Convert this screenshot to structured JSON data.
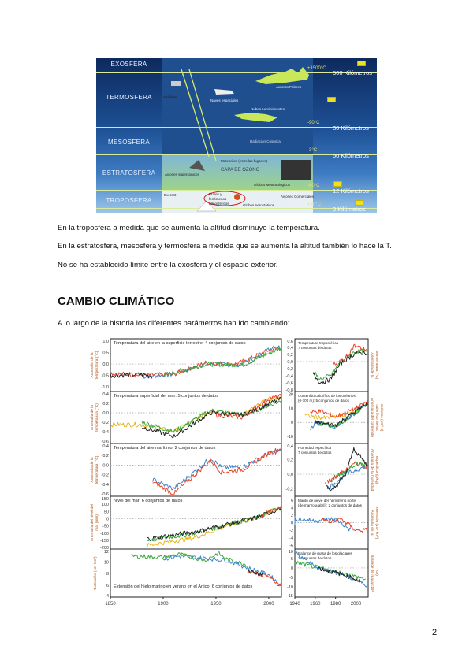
{
  "atmosphere_diagram": {
    "layers": [
      "EXOSFERA",
      "TERMOSFERA",
      "MESOSFERA",
      "ESTRATOSFERA",
      "TROPOSFERA"
    ],
    "altitudes": [
      "500 Kilómetros",
      "80 Kilómetros",
      "50 Kilómetros",
      "12 Kilómetros",
      "0 Kilómetros"
    ],
    "temperatures": [
      "+1500°C",
      "-90°C",
      "-3°C",
      "-60°C",
      "+20°C"
    ],
    "labels": [
      "Satélites",
      "Naves espaciales",
      "Auroras Polares",
      "Nubes Luminiscentes",
      "Radiación Cósmica",
      "Meteoritos (estrellas fugaces)",
      "Aviones supersónicos",
      "CAPA DE OZONO",
      "Globos Meteorológicos",
      "Everest",
      "Nubes y fenómenos atmosféricos",
      "Globos Aerostáticos",
      "Aviones Comerciales"
    ]
  },
  "paragraphs": [
    "En la troposfera a medida que se aumenta la altitud disminuye la temperatura.",
    "En la estratosfera, mesosfera y termosfera a medida que se aumenta la altitud también lo hace la T.",
    "No se ha establecido límite entre la exosfera y el espacio exterior."
  ],
  "section_title": "CAMBIO CLIMÁTICO",
  "intro": "A lo largo de la historia los diferentes parámetros han ido cambiando:",
  "page_number": "2",
  "colors": {
    "blue": "#3f86c8",
    "red": "#e8452a",
    "green": "#3aa83a",
    "yellow": "#e6b820",
    "black": "#222222"
  },
  "chart_data": [
    {
      "type": "line",
      "column": "left",
      "title": "Temperatura del aire en la superficie terrestre: 4 conjuntos de datos",
      "ylabel": "Anomalía de la temperatura (°C)",
      "yticks": [
        "1,0",
        "0,5",
        "0,0",
        "-0,5",
        "-1,0"
      ],
      "ylim": [
        -1.2,
        1.1
      ],
      "xlim": [
        1850,
        2012
      ],
      "series": [
        {
          "color": "blue",
          "points": [
            [
              1880,
              -0.55
            ],
            [
              1910,
              -0.45
            ],
            [
              1940,
              0.0
            ],
            [
              1970,
              -0.05
            ],
            [
              1990,
              0.3
            ],
            [
              2005,
              0.8
            ],
            [
              2012,
              0.7
            ]
          ]
        },
        {
          "color": "red",
          "points": [
            [
              1850,
              -0.4
            ],
            [
              1880,
              -0.5
            ],
            [
              1910,
              -0.45
            ],
            [
              1940,
              0.05
            ],
            [
              1970,
              0.0
            ],
            [
              2000,
              0.6
            ],
            [
              2012,
              0.7
            ]
          ]
        },
        {
          "color": "green",
          "points": [
            [
              1900,
              -0.5
            ],
            [
              1940,
              0.0
            ],
            [
              1975,
              -0.05
            ],
            [
              2012,
              0.7
            ]
          ]
        },
        {
          "color": "black",
          "points": [
            [
              1850,
              -0.5
            ],
            [
              1880,
              -0.45
            ],
            [
              1890,
              -0.55
            ]
          ]
        }
      ]
    },
    {
      "type": "line",
      "column": "left",
      "title": "Temperatura superficial del mar: 5 conjuntos de datos",
      "ylabel": "Anomalía de la temperatura (°C)",
      "yticks": [
        "0,4",
        "0,2",
        "0,0",
        "-0,2",
        "-0,4",
        "-0,6"
      ],
      "ylim": [
        -0.65,
        0.45
      ],
      "xlim": [
        1850,
        2012
      ],
      "series": [
        {
          "color": "yellow",
          "points": [
            [
              1850,
              -0.25
            ],
            [
              1880,
              -0.25
            ],
            [
              1910,
              -0.4
            ],
            [
              1945,
              0.05
            ],
            [
              1975,
              -0.05
            ],
            [
              2000,
              0.3
            ],
            [
              2012,
              0.3
            ]
          ]
        },
        {
          "color": "green",
          "points": [
            [
              1880,
              -0.2
            ],
            [
              1910,
              -0.4
            ],
            [
              1945,
              0.05
            ],
            [
              1975,
              -0.05
            ],
            [
              2012,
              0.25
            ]
          ]
        },
        {
          "color": "black",
          "points": [
            [
              1880,
              -0.3
            ],
            [
              1910,
              -0.5
            ],
            [
              1945,
              0.0
            ],
            [
              1975,
              -0.05
            ],
            [
              2012,
              0.3
            ]
          ]
        },
        {
          "color": "red",
          "points": [
            [
              1950,
              -0.05
            ],
            [
              1975,
              -0.1
            ],
            [
              2000,
              0.3
            ],
            [
              2012,
              0.35
            ]
          ]
        }
      ]
    },
    {
      "type": "line",
      "column": "left",
      "title": "Temperatura del aire marítimo: 2 conjuntos de datos",
      "ylabel": "Anomalía de la temperatura (°C)",
      "yticks": [
        "0,4",
        "0,2",
        "0,0",
        "-0,2",
        "-0,4",
        "-0,6"
      ],
      "ylim": [
        -0.65,
        0.45
      ],
      "xlim": [
        1850,
        2012
      ],
      "series": [
        {
          "color": "blue",
          "points": [
            [
              1890,
              -0.3
            ],
            [
              1910,
              -0.5
            ],
            [
              1945,
              0.15
            ],
            [
              1955,
              -0.05
            ],
            [
              1975,
              -0.05
            ],
            [
              2000,
              0.25
            ],
            [
              2012,
              0.3
            ]
          ]
        },
        {
          "color": "red",
          "points": [
            [
              1890,
              -0.35
            ],
            [
              1910,
              -0.6
            ],
            [
              1945,
              0.1
            ],
            [
              1955,
              -0.15
            ],
            [
              1975,
              -0.1
            ],
            [
              2000,
              0.25
            ],
            [
              2012,
              0.35
            ]
          ]
        }
      ]
    },
    {
      "type": "line",
      "column": "left",
      "title": "Nivel del mar: 6 conjuntos de datos",
      "ylabel": "Anomalía del nivel del mar (mm)",
      "yticks": [
        "150",
        "100",
        "50",
        "0",
        "-50",
        "-100",
        "-150",
        "-200"
      ],
      "ylim": [
        -210,
        155
      ],
      "xlim": [
        1850,
        2012
      ],
      "series": [
        {
          "color": "yellow",
          "points": [
            [
              1885,
              -185
            ],
            [
              1930,
              -130
            ],
            [
              1960,
              -50
            ],
            [
              1990,
              10
            ],
            [
              2012,
              80
            ]
          ]
        },
        {
          "color": "green",
          "points": [
            [
              1885,
              -150
            ],
            [
              1930,
              -100
            ],
            [
              1960,
              -40
            ],
            [
              1990,
              10
            ],
            [
              2012,
              80
            ]
          ]
        },
        {
          "color": "black",
          "points": [
            [
              1885,
              -140
            ],
            [
              1930,
              -90
            ],
            [
              1960,
              -40
            ],
            [
              1990,
              10
            ],
            [
              2012,
              75
            ]
          ]
        },
        {
          "color": "red",
          "points": [
            [
              1993,
              20
            ],
            [
              2012,
              85
            ]
          ]
        }
      ]
    },
    {
      "type": "line",
      "column": "left",
      "title": "Extensión del hielo marino en verano en el Ártico: 6 conjuntos de datos",
      "ylabel": "Extensión (10⁶ km²)",
      "yticks": [
        "12",
        "10",
        "8",
        "6",
        "4"
      ],
      "ylim": [
        4,
        12.2
      ],
      "xlim": [
        1850,
        2012
      ],
      "xticks": [
        "1850",
        "1900",
        "1950",
        "2000"
      ],
      "series": [
        {
          "color": "green",
          "points": [
            [
              1870,
              11
            ],
            [
              1900,
              10.8
            ],
            [
              1915,
              11.3
            ],
            [
              1940,
              10.3
            ],
            [
              1952,
              11.5
            ],
            [
              1960,
              10.5
            ],
            [
              1980,
              9.5
            ]
          ]
        },
        {
          "color": "blue",
          "points": [
            [
              1900,
              10.5
            ],
            [
              1915,
              11
            ],
            [
              1960,
              10.3
            ],
            [
              1980,
              9
            ],
            [
              2000,
              7.8
            ],
            [
              2012,
              6
            ]
          ]
        },
        {
          "color": "red",
          "points": [
            [
              1980,
              8.5
            ],
            [
              2000,
              7.5
            ],
            [
              2012,
              5.8
            ]
          ]
        },
        {
          "color": "black",
          "points": [
            [
              1980,
              8.5
            ],
            [
              1995,
              7.8
            ]
          ]
        }
      ]
    },
    {
      "type": "line",
      "column": "right",
      "title": "Temperatura troposférica\n7 conjuntos de datos",
      "ylabel": "Anomalía de la temperatura (°C)",
      "yticks": [
        "0,6",
        "0,4",
        "0,2",
        "0,0",
        "-0,2",
        "-0,4",
        "-0,6",
        "-0,8"
      ],
      "ylim": [
        -0.85,
        0.65
      ],
      "xlim": [
        1940,
        2012
      ],
      "series": [
        {
          "color": "green",
          "points": [
            [
              1958,
              -0.3
            ],
            [
              1965,
              -0.5
            ],
            [
              1975,
              -0.4
            ],
            [
              1985,
              0.0
            ],
            [
              2000,
              0.3
            ],
            [
              2012,
              0.3
            ]
          ]
        },
        {
          "color": "black",
          "points": [
            [
              1958,
              -0.35
            ],
            [
              1965,
              -0.6
            ],
            [
              1975,
              -0.5
            ],
            [
              1985,
              -0.05
            ],
            [
              2000,
              0.25
            ],
            [
              2012,
              0.25
            ]
          ]
        },
        {
          "color": "red",
          "points": [
            [
              1978,
              -0.1
            ],
            [
              1990,
              0.1
            ],
            [
              1998,
              0.45
            ],
            [
              2012,
              0.3
            ]
          ]
        }
      ]
    },
    {
      "type": "line",
      "column": "right",
      "title": "Contenido calorífico de los océanos\n(0-700 m): 5 conjuntos de datos",
      "ylabel": "Anomalía del contenido calorífico de los océanos (10²² J)",
      "yticks": [
        "20",
        "10",
        "0",
        "-10"
      ],
      "ylim": [
        -15,
        22
      ],
      "xlim": [
        1940,
        2012
      ],
      "series": [
        {
          "color": "yellow",
          "points": [
            [
              1950,
              5
            ],
            [
              1970,
              3
            ],
            [
              1990,
              5
            ],
            [
              2012,
              14
            ]
          ]
        },
        {
          "color": "red",
          "points": [
            [
              1955,
              7
            ],
            [
              1965,
              8
            ],
            [
              1980,
              4
            ],
            [
              2000,
              10
            ],
            [
              2012,
              15
            ]
          ]
        },
        {
          "color": "blue",
          "points": [
            [
              1955,
              -5
            ],
            [
              1960,
              0
            ],
            [
              1980,
              -3
            ],
            [
              2000,
              7
            ],
            [
              2012,
              14
            ]
          ]
        },
        {
          "color": "green",
          "points": [
            [
              1960,
              0
            ],
            [
              1980,
              -3
            ],
            [
              2000,
              7
            ],
            [
              2012,
              14
            ]
          ]
        },
        {
          "color": "black",
          "points": [
            [
              1960,
              0
            ],
            [
              1980,
              -2
            ],
            [
              2000,
              8
            ],
            [
              2012,
              14
            ]
          ]
        }
      ]
    },
    {
      "type": "line",
      "column": "right",
      "title": "Humedad específica\n7 conjuntos de datos",
      "ylabel": "Anomalía de la humedad específica (g/kg)",
      "yticks": [
        "0,4",
        "0,2",
        "0,0",
        "-0,2"
      ],
      "ylim": [
        -0.3,
        0.42
      ],
      "xlim": [
        1940,
        2012
      ],
      "series": [
        {
          "color": "red",
          "points": [
            [
              1972,
              -0.1
            ],
            [
              1990,
              0.05
            ],
            [
              2000,
              0.15
            ],
            [
              2012,
              0.1
            ]
          ]
        },
        {
          "color": "blue",
          "points": [
            [
              1972,
              -0.2
            ],
            [
              1990,
              0.0
            ],
            [
              2012,
              0.12
            ]
          ]
        },
        {
          "color": "green",
          "points": [
            [
              1975,
              -0.1
            ],
            [
              2000,
              0.15
            ],
            [
              2012,
              0.12
            ]
          ]
        },
        {
          "color": "black",
          "points": [
            [
              1970,
              -0.1
            ],
            [
              1975,
              -0.25
            ],
            [
              1990,
              0.0
            ],
            [
              1998,
              0.35
            ],
            [
              2012,
              0.1
            ]
          ]
        }
      ]
    },
    {
      "type": "line",
      "column": "right",
      "title": "Manto de nieve del hemisferio norte\n(de marzo a abril): 2 conjuntos de datos",
      "ylabel": "Anomalía en la extensión (10⁶ km²)",
      "yticks": [
        "6",
        "4",
        "2",
        "0",
        "-2",
        "-4",
        "-6"
      ],
      "ylim": [
        -7,
        7
      ],
      "xlim": [
        1940,
        2012
      ],
      "series": [
        {
          "color": "blue",
          "points": [
            [
              1922,
              0
            ],
            [
              1940,
              1
            ],
            [
              1960,
              0.5
            ],
            [
              1980,
              1
            ],
            [
              1995,
              -2
            ]
          ]
        },
        {
          "color": "red",
          "points": [
            [
              1967,
              1
            ],
            [
              1975,
              0
            ],
            [
              1985,
              1
            ],
            [
              2000,
              -2
            ],
            [
              2012,
              -2
            ]
          ]
        }
      ]
    },
    {
      "type": "line",
      "column": "right",
      "title": "Balance de masa de los glaciares\n3 conjuntos de datos",
      "ylabel": "Balance de masa (10³ Gt)",
      "yticks": [
        "10",
        "5",
        "0",
        "-5",
        "-10",
        "-15"
      ],
      "ylim": [
        -15.5,
        10
      ],
      "xlim": [
        1940,
        2012
      ],
      "xticks": [
        "1940",
        "1960",
        "1980",
        "2000"
      ],
      "series": [
        {
          "color": "green",
          "points": [
            [
              1940,
              3
            ],
            [
              1960,
              0.5
            ],
            [
              1980,
              -2
            ],
            [
              2010,
              -6
            ]
          ]
        },
        {
          "color": "blue",
          "points": [
            [
              1940,
              8
            ],
            [
              1962,
              0
            ],
            [
              1985,
              -3
            ],
            [
              2012,
              -9.5
            ]
          ]
        },
        {
          "color": "black",
          "points": [
            [
              1962,
              0
            ],
            [
              1990,
              -4
            ],
            [
              2005,
              -7
            ]
          ]
        }
      ]
    }
  ]
}
